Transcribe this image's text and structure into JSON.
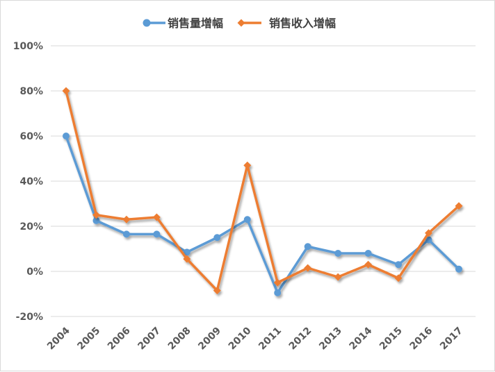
{
  "chart_data": {
    "type": "line",
    "title": "",
    "xlabel": "",
    "ylabel": "",
    "categories": [
      "2004",
      "2005",
      "2006",
      "2007",
      "2008",
      "2009",
      "2010",
      "2011",
      "2012",
      "2013",
      "2014",
      "2015",
      "2016",
      "2017"
    ],
    "ylim": [
      -20,
      100
    ],
    "yticks": [
      -20,
      0,
      20,
      40,
      60,
      80,
      100
    ],
    "ytick_labels": [
      "-20%",
      "0%",
      "20%",
      "40%",
      "60%",
      "80%",
      "100%"
    ],
    "grid": true,
    "legend_position": "top",
    "series": [
      {
        "name": "销售量增幅",
        "color": "#5B9BD5",
        "marker": "circle",
        "values": [
          60,
          22.5,
          16.5,
          16.5,
          8.5,
          15,
          23,
          -9.5,
          11,
          8,
          8,
          3,
          14,
          1
        ]
      },
      {
        "name": "销售收入增幅",
        "color": "#ED7D31",
        "marker": "diamond",
        "values": [
          80,
          25,
          23,
          24,
          5.5,
          -8.5,
          47,
          -5,
          1.5,
          -2.5,
          3,
          -3,
          17,
          29
        ]
      }
    ]
  }
}
